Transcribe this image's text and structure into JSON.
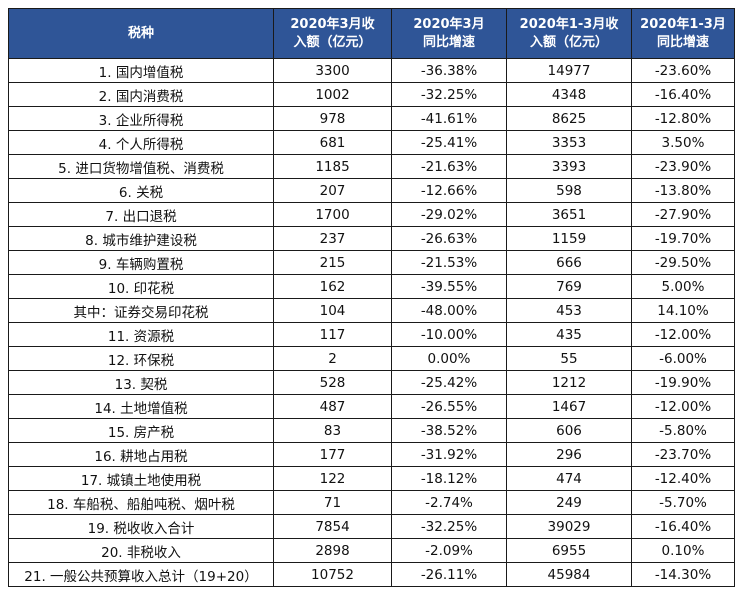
{
  "headers": [
    {
      "line1": "税种",
      "line2": ""
    },
    {
      "line1": "2020年3月收",
      "line2": "入额（亿元）"
    },
    {
      "line1": "2020年3月",
      "line2": "同比增速"
    },
    {
      "line1": "2020年1-3月收",
      "line2": "入额（亿元）"
    },
    {
      "line1": "2020年1-3月",
      "line2": "同比增速"
    }
  ],
  "rows": [
    {
      "name": "1. 国内增值税",
      "mar_rev": "3300",
      "mar_yoy": "-36.38%",
      "q1_rev": "14977",
      "q1_yoy": "-23.60%"
    },
    {
      "name": "2. 国内消费税",
      "mar_rev": "1002",
      "mar_yoy": "-32.25%",
      "q1_rev": "4348",
      "q1_yoy": "-16.40%"
    },
    {
      "name": "3. 企业所得税",
      "mar_rev": "978",
      "mar_yoy": "-41.61%",
      "q1_rev": "8625",
      "q1_yoy": "-12.80%"
    },
    {
      "name": "4. 个人所得税",
      "mar_rev": "681",
      "mar_yoy": "-25.41%",
      "q1_rev": "3353",
      "q1_yoy": "3.50%"
    },
    {
      "name": "5. 进口货物增值税、消费税",
      "mar_rev": "1185",
      "mar_yoy": "-21.63%",
      "q1_rev": "3393",
      "q1_yoy": "-23.90%"
    },
    {
      "name": "6. 关税",
      "mar_rev": "207",
      "mar_yoy": "-12.66%",
      "q1_rev": "598",
      "q1_yoy": "-13.80%"
    },
    {
      "name": "7. 出口退税",
      "mar_rev": "1700",
      "mar_yoy": "-29.02%",
      "q1_rev": "3651",
      "q1_yoy": "-27.90%"
    },
    {
      "name": "8. 城市维护建设税",
      "mar_rev": "237",
      "mar_yoy": "-26.63%",
      "q1_rev": "1159",
      "q1_yoy": "-19.70%"
    },
    {
      "name": "9. 车辆购置税",
      "mar_rev": "215",
      "mar_yoy": "-21.53%",
      "q1_rev": "666",
      "q1_yoy": "-29.50%"
    },
    {
      "name": "10. 印花税",
      "mar_rev": "162",
      "mar_yoy": "-39.55%",
      "q1_rev": "769",
      "q1_yoy": "5.00%"
    },
    {
      "name": "其中：证券交易印花税",
      "mar_rev": "104",
      "mar_yoy": "-48.00%",
      "q1_rev": "453",
      "q1_yoy": "14.10%"
    },
    {
      "name": "11. 资源税",
      "mar_rev": "117",
      "mar_yoy": "-10.00%",
      "q1_rev": "435",
      "q1_yoy": "-12.00%"
    },
    {
      "name": "12. 环保税",
      "mar_rev": "2",
      "mar_yoy": "0.00%",
      "q1_rev": "55",
      "q1_yoy": "-6.00%"
    },
    {
      "name": "13. 契税",
      "mar_rev": "528",
      "mar_yoy": "-25.42%",
      "q1_rev": "1212",
      "q1_yoy": "-19.90%"
    },
    {
      "name": "14. 土地增值税",
      "mar_rev": "487",
      "mar_yoy": "-26.55%",
      "q1_rev": "1467",
      "q1_yoy": "-12.00%"
    },
    {
      "name": "15. 房产税",
      "mar_rev": "83",
      "mar_yoy": "-38.52%",
      "q1_rev": "606",
      "q1_yoy": "-5.80%"
    },
    {
      "name": "16. 耕地占用税",
      "mar_rev": "177",
      "mar_yoy": "-31.92%",
      "q1_rev": "296",
      "q1_yoy": "-23.70%"
    },
    {
      "name": "17. 城镇土地使用税",
      "mar_rev": "122",
      "mar_yoy": "-18.12%",
      "q1_rev": "474",
      "q1_yoy": "-12.40%"
    },
    {
      "name": "18. 车船税、船舶吨税、烟叶税",
      "mar_rev": "71",
      "mar_yoy": "-2.74%",
      "q1_rev": "249",
      "q1_yoy": "-5.70%"
    },
    {
      "name": "19. 税收收入合计",
      "mar_rev": "7854",
      "mar_yoy": "-32.25%",
      "q1_rev": "39029",
      "q1_yoy": "-16.40%"
    },
    {
      "name": "20. 非税收入",
      "mar_rev": "2898",
      "mar_yoy": "-2.09%",
      "q1_rev": "6955",
      "q1_yoy": "0.10%"
    },
    {
      "name": "21. 一般公共预算收入总计（19+20）",
      "mar_rev": "10752",
      "mar_yoy": "-26.11%",
      "q1_rev": "45984",
      "q1_yoy": "-14.30%"
    }
  ],
  "colors": {
    "header_bg": "#2f5597",
    "header_text": "#ffffff",
    "border": "#1a1a1a"
  }
}
